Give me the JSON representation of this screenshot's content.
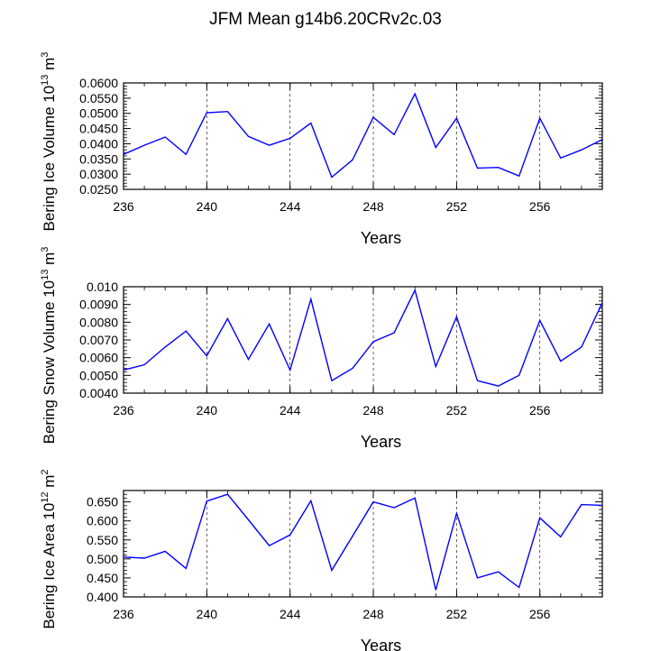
{
  "title": "JFM Mean g14b6.20CRv2c.03",
  "line_color": "#0000ff",
  "chart_data": [
    {
      "type": "line",
      "xlabel": "Years",
      "ylabel": "Bering Ice Volume 10",
      "ylabel_exp": "13",
      "ylabel_unit": "m",
      "ylabel_unit_exp": "3",
      "xlim": [
        236,
        259
      ],
      "ylim": [
        0.025,
        0.06
      ],
      "x_ticks": [
        236,
        240,
        244,
        248,
        252,
        256
      ],
      "y_ticks": [
        "0.0250",
        "0.0300",
        "0.0350",
        "0.0400",
        "0.0450",
        "0.0500",
        "0.0550",
        "0.0600"
      ],
      "grid": "vertical dashed at major x ticks",
      "x": [
        236,
        237,
        238,
        239,
        240,
        241,
        242,
        243,
        244,
        245,
        246,
        247,
        248,
        249,
        250,
        251,
        252,
        253,
        254,
        255,
        256,
        257,
        258,
        259
      ],
      "values": [
        0.0365,
        0.0395,
        0.0422,
        0.0365,
        0.0502,
        0.0506,
        0.0424,
        0.0395,
        0.0418,
        0.0468,
        0.029,
        0.0347,
        0.0487,
        0.043,
        0.0564,
        0.0388,
        0.0484,
        0.032,
        0.0322,
        0.0294,
        0.0484,
        0.0353,
        0.038,
        0.0414
      ]
    },
    {
      "type": "line",
      "xlabel": "Years",
      "ylabel": "Bering Snow Volume 10",
      "ylabel_exp": "13",
      "ylabel_unit": "m",
      "ylabel_unit_exp": "3",
      "xlim": [
        236,
        259
      ],
      "ylim": [
        0.004,
        0.01
      ],
      "x_ticks": [
        236,
        240,
        244,
        248,
        252,
        256
      ],
      "y_ticks": [
        "0.0040",
        "0.0050",
        "0.0060",
        "0.0070",
        "0.0080",
        "0.0090",
        "0.010"
      ],
      "grid": "vertical dashed at major x ticks",
      "x": [
        236,
        237,
        238,
        239,
        240,
        241,
        242,
        243,
        244,
        245,
        246,
        247,
        248,
        249,
        250,
        251,
        252,
        253,
        254,
        255,
        256,
        257,
        258,
        259
      ],
      "values": [
        0.0053,
        0.0056,
        0.0066,
        0.0075,
        0.0061,
        0.0082,
        0.0059,
        0.0079,
        0.0053,
        0.0093,
        0.0047,
        0.0054,
        0.0069,
        0.0074,
        0.0098,
        0.0055,
        0.0083,
        0.0047,
        0.0044,
        0.005,
        0.0081,
        0.0058,
        0.0066,
        0.0091
      ]
    },
    {
      "type": "line",
      "xlabel": "Years",
      "ylabel": "Bering Ice Area 10",
      "ylabel_exp": "12",
      "ylabel_unit": "m",
      "ylabel_unit_exp": "2",
      "xlim": [
        236,
        259
      ],
      "ylim": [
        0.4,
        0.68
      ],
      "x_ticks": [
        236,
        240,
        244,
        248,
        252,
        256
      ],
      "y_ticks": [
        "0.400",
        "0.450",
        "0.500",
        "0.550",
        "0.600",
        "0.650"
      ],
      "grid": "vertical dashed at major x ticks",
      "x": [
        236,
        237,
        238,
        239,
        240,
        241,
        242,
        243,
        244,
        245,
        246,
        247,
        248,
        249,
        250,
        251,
        252,
        253,
        254,
        255,
        256,
        257,
        258,
        259
      ],
      "values": [
        0.505,
        0.502,
        0.52,
        0.475,
        0.652,
        0.67,
        0.603,
        0.535,
        0.563,
        0.653,
        0.47,
        0.56,
        0.65,
        0.635,
        0.66,
        0.418,
        0.62,
        0.45,
        0.466,
        0.425,
        0.608,
        0.558,
        0.643,
        0.641
      ]
    }
  ]
}
